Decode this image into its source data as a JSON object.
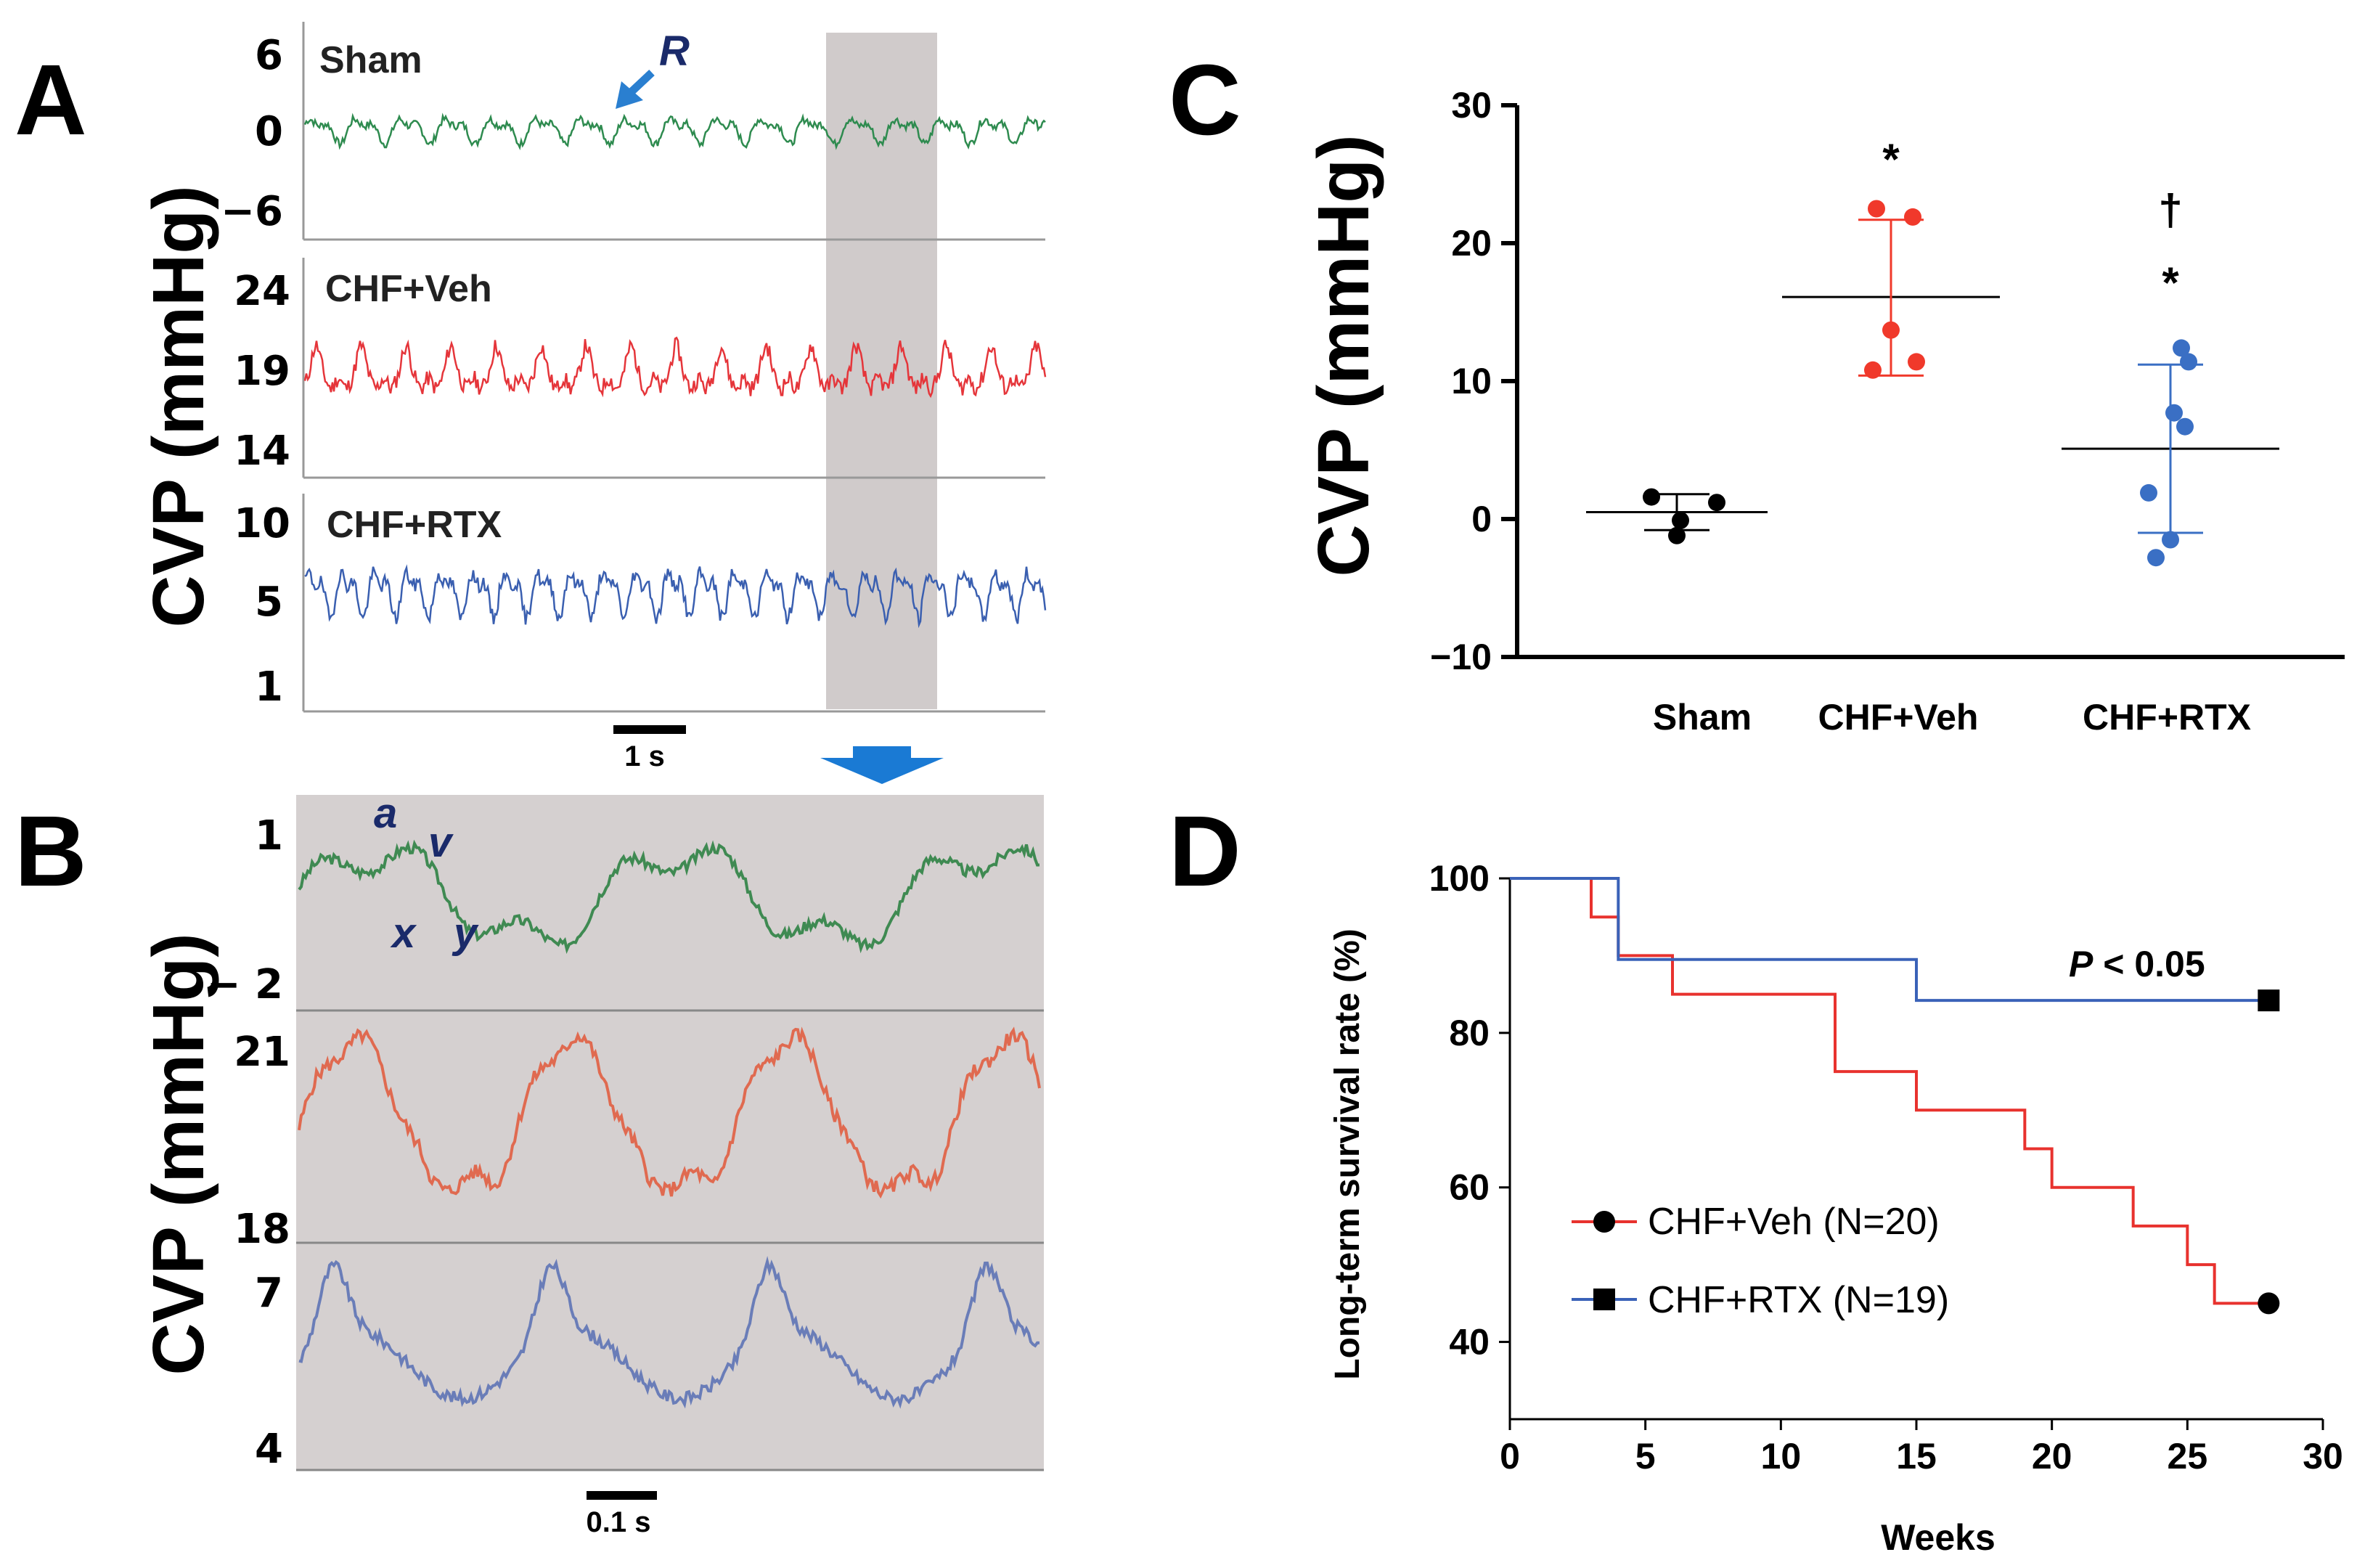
{
  "figure": {
    "panelA": {
      "letter": "A",
      "ylabel": "CVP (mmHg)",
      "scalebar": "1 s",
      "traces": [
        {
          "name": "Sham",
          "color": "#2e8b4f",
          "ticks": [
            "6",
            "0",
            "−6"
          ]
        },
        {
          "name": "CHF+Veh",
          "color": "#e5353a",
          "ticks": [
            "24",
            "19",
            "14"
          ]
        },
        {
          "name": "CHF+RTX",
          "color": "#3a5fb0",
          "ticks": [
            "10",
            "5",
            "1"
          ]
        }
      ],
      "annotation": "R"
    },
    "panelB": {
      "letter": "B",
      "ylabel": "CVP (mmHg)",
      "scalebar": "0.1 s",
      "traces": [
        {
          "name": "Sham",
          "color": "#3f8a52",
          "ticks": [
            "1",
            "− 2"
          ]
        },
        {
          "name": "CHF+Veh",
          "color": "#e06a50",
          "ticks": [
            "21",
            "18"
          ]
        },
        {
          "name": "CHF+RTX",
          "color": "#6a7db8",
          "ticks": [
            "7",
            "4"
          ]
        }
      ],
      "wave_labels": [
        "a",
        "v",
        "x",
        "y"
      ]
    },
    "panelC": {
      "letter": "C"
    },
    "panelD": {
      "letter": "D"
    }
  },
  "chart_data": [
    {
      "type": "scatter",
      "panel": "C",
      "title": "",
      "xlabel": "",
      "ylabel": "CVP (mmHg)",
      "ylim": [
        -10,
        30
      ],
      "yticks": [
        "30",
        "20",
        "10",
        "0",
        "−10"
      ],
      "categories": [
        "Sham",
        "CHF+Veh",
        "CHF+RTX"
      ],
      "series": [
        {
          "name": "Sham",
          "color": "#000000",
          "points": [
            1.6,
            1.2,
            -0.1,
            -1.2
          ],
          "mean": 0.5,
          "sd_high": 1.8,
          "sd_low": -0.8,
          "marks": []
        },
        {
          "name": "CHF+Veh",
          "color": "#f0392b",
          "points": [
            22.5,
            21.9,
            13.7,
            11.4,
            10.8
          ],
          "mean": 16.1,
          "sd_high": 21.7,
          "sd_low": 10.4,
          "marks": [
            "*"
          ]
        },
        {
          "name": "CHF+RTX",
          "color": "#3a6fc4",
          "points": [
            12.4,
            11.4,
            7.7,
            6.7,
            1.9,
            -1.5,
            -2.8
          ],
          "mean": 5.1,
          "sd_high": 11.2,
          "sd_low": -1.0,
          "marks": [
            "*",
            "†"
          ]
        }
      ]
    },
    {
      "type": "line",
      "panel": "D",
      "title": "",
      "xlabel": "Weeks",
      "ylabel": "Long-term survival rate (%)",
      "xlim": [
        0,
        30
      ],
      "ylim": [
        30,
        100
      ],
      "xticks": [
        "0",
        "5",
        "10",
        "15",
        "20",
        "25",
        "30"
      ],
      "yticks": [
        "100",
        "80",
        "60",
        "40"
      ],
      "annotation": "P < 0.05",
      "series": [
        {
          "name": "CHF+Veh (N=20)",
          "color": "#e8322e",
          "marker": "circle",
          "steps": [
            [
              0,
              100
            ],
            [
              3,
              95
            ],
            [
              4,
              90
            ],
            [
              6,
              85
            ],
            [
              12,
              75
            ],
            [
              15,
              70
            ],
            [
              19,
              65
            ],
            [
              20,
              60
            ],
            [
              23,
              55
            ],
            [
              25,
              50
            ],
            [
              26,
              45
            ],
            [
              28,
              45
            ]
          ]
        },
        {
          "name": "CHF+RTX (N=19)",
          "color": "#3a62b8",
          "marker": "square",
          "steps": [
            [
              0,
              100
            ],
            [
              4,
              89.5
            ],
            [
              15,
              84.2
            ],
            [
              28,
              84.2
            ]
          ]
        }
      ]
    }
  ]
}
